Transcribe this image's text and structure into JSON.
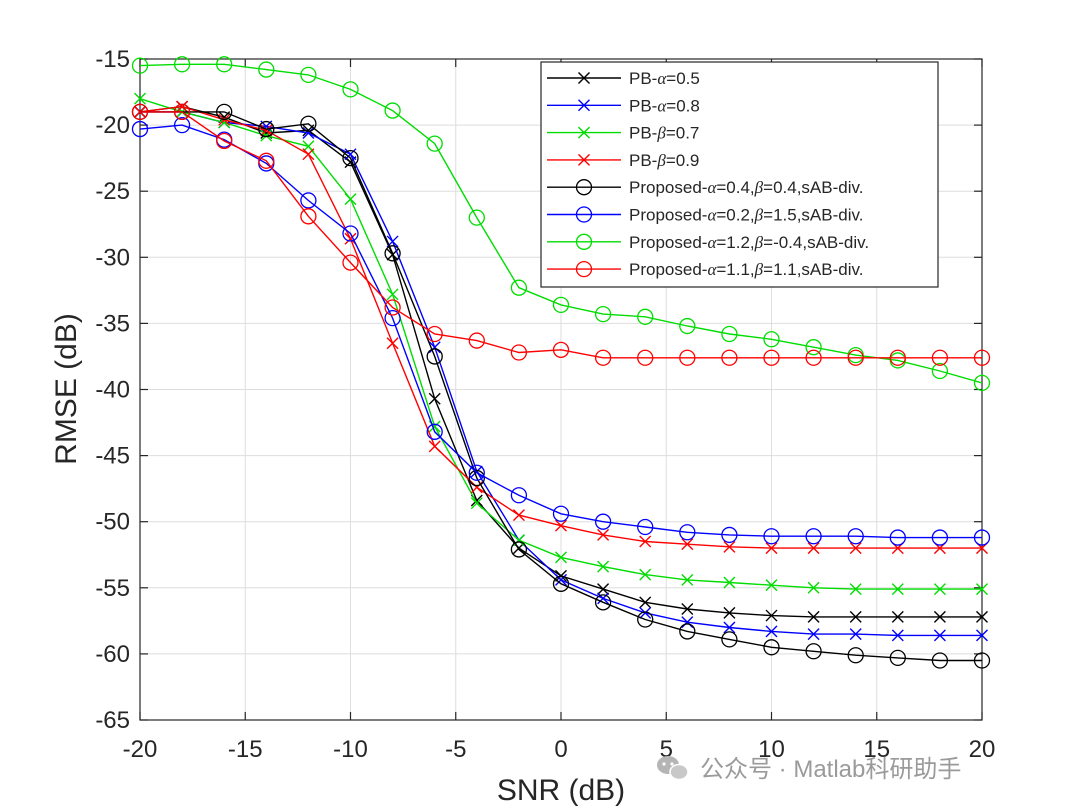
{
  "chart_data": {
    "type": "line",
    "title": "",
    "xlabel": "SNR (dB)",
    "ylabel": "RMSE (dB)",
    "xlim": [
      -20,
      20
    ],
    "ylim": [
      -65,
      -15
    ],
    "grid": true,
    "legend_position": "top-right",
    "x": [
      -20,
      -18,
      -16,
      -14,
      -12,
      -10,
      -8,
      -6,
      -4,
      -2,
      0,
      2,
      4,
      6,
      8,
      10,
      12,
      14,
      16,
      18,
      20
    ],
    "x_ticks": [
      -20,
      -15,
      -10,
      -5,
      0,
      5,
      10,
      15,
      20
    ],
    "y_ticks": [
      -15,
      -20,
      -25,
      -30,
      -35,
      -40,
      -45,
      -50,
      -55,
      -60,
      -65
    ],
    "series": [
      {
        "name": "PB-α=0.5",
        "prefix": "PB-",
        "params": [
          [
            "α",
            "=0.5"
          ]
        ],
        "suffix": "",
        "color": "#000000",
        "marker": "x",
        "values": [
          -19.0,
          -18.6,
          -19.4,
          -20.6,
          -20.4,
          -22.8,
          -29.8,
          -40.7,
          -48.4,
          -52.0,
          -54.1,
          -55.1,
          -56.1,
          -56.6,
          -56.9,
          -57.1,
          -57.2,
          -57.2,
          -57.2,
          -57.2,
          -57.2
        ]
      },
      {
        "name": "PB-α=0.8",
        "prefix": "PB-",
        "params": [
          [
            "α",
            "=0.8"
          ]
        ],
        "suffix": "",
        "color": "#0000ff",
        "marker": "x",
        "values": [
          -19.0,
          -19.0,
          -19.8,
          -20.1,
          -20.6,
          -22.2,
          -28.8,
          -36.8,
          -46.2,
          -51.4,
          -54.4,
          -55.8,
          -56.9,
          -57.6,
          -58.0,
          -58.3,
          -58.5,
          -58.5,
          -58.6,
          -58.6,
          -58.6
        ]
      },
      {
        "name": "PB-β=0.7",
        "prefix": "PB-",
        "params": [
          [
            "β",
            "=0.7"
          ]
        ],
        "suffix": "",
        "color": "#00dd00",
        "marker": "x",
        "values": [
          -18.0,
          -19.0,
          -19.8,
          -20.8,
          -21.6,
          -25.6,
          -32.8,
          -42.8,
          -48.6,
          -51.4,
          -52.7,
          -53.4,
          -54.0,
          -54.4,
          -54.6,
          -54.8,
          -55.0,
          -55.1,
          -55.1,
          -55.1,
          -55.1
        ]
      },
      {
        "name": "PB-β=0.9",
        "prefix": "PB-",
        "params": [
          [
            "β",
            "=0.9"
          ]
        ],
        "suffix": "",
        "color": "#ff0000",
        "marker": "x",
        "values": [
          -19.0,
          -18.6,
          -19.6,
          -20.4,
          -22.2,
          -28.6,
          -36.5,
          -44.3,
          -47.4,
          -49.5,
          -50.3,
          -51.0,
          -51.5,
          -51.7,
          -51.9,
          -52.0,
          -52.0,
          -52.0,
          -52.0,
          -52.0,
          -52.0
        ]
      },
      {
        "name": "Proposed-α=0.4,β=0.4,sAB-div.",
        "prefix": "Proposed-",
        "params": [
          [
            "α",
            "=0.4,"
          ],
          [
            "β",
            "=0.4,sAB-div."
          ]
        ],
        "suffix": "",
        "color": "#000000",
        "marker": "o",
        "values": [
          -19.0,
          -19.0,
          -19.0,
          -20.3,
          -19.9,
          -22.5,
          -29.7,
          -37.5,
          -46.7,
          -52.1,
          -54.7,
          -56.1,
          -57.4,
          -58.3,
          -58.9,
          -59.5,
          -59.8,
          -60.1,
          -60.3,
          -60.5,
          -60.5
        ]
      },
      {
        "name": "Proposed-α=0.2,β=1.5,sAB-div.",
        "prefix": "Proposed-",
        "params": [
          [
            "α",
            "=0.2,"
          ],
          [
            "β",
            "=1.5,sAB-div."
          ]
        ],
        "suffix": "",
        "color": "#0000ff",
        "marker": "o",
        "values": [
          -20.3,
          -20.0,
          -21.1,
          -22.9,
          -25.7,
          -28.2,
          -34.6,
          -43.2,
          -46.3,
          -48.0,
          -49.4,
          -50.0,
          -50.4,
          -50.8,
          -51.0,
          -51.1,
          -51.1,
          -51.1,
          -51.2,
          -51.2,
          -51.2
        ]
      },
      {
        "name": "Proposed-α=1.2,β=-0.4,sAB-div.",
        "prefix": "Proposed-",
        "params": [
          [
            "α",
            "=1.2,"
          ],
          [
            "β",
            "=-0.4,sAB-div."
          ]
        ],
        "suffix": "",
        "color": "#00dd00",
        "marker": "o",
        "values": [
          -15.5,
          -15.4,
          -15.4,
          -15.8,
          -16.2,
          -17.3,
          -18.9,
          -21.4,
          -27.0,
          -32.3,
          -33.6,
          -34.3,
          -34.5,
          -35.2,
          -35.8,
          -36.2,
          -36.8,
          -37.4,
          -37.8,
          -38.6,
          -39.5
        ]
      },
      {
        "name": "Proposed-α=1.1,β=1.1,sAB-div.",
        "prefix": "Proposed-",
        "params": [
          [
            "α",
            "=1.1,"
          ],
          [
            "β",
            "=1.1,sAB-div."
          ]
        ],
        "suffix": "",
        "color": "#ff0000",
        "marker": "o",
        "values": [
          -19.0,
          -19.0,
          -21.2,
          -22.7,
          -26.9,
          -30.4,
          -33.8,
          -35.8,
          -36.3,
          -37.2,
          -37.0,
          -37.6,
          -37.6,
          -37.6,
          -37.6,
          -37.6,
          -37.6,
          -37.6,
          -37.6,
          -37.6,
          -37.6
        ]
      }
    ]
  },
  "watermark": {
    "text": "公众号 · Matlab科研助手",
    "icon": "wechat-icon"
  }
}
